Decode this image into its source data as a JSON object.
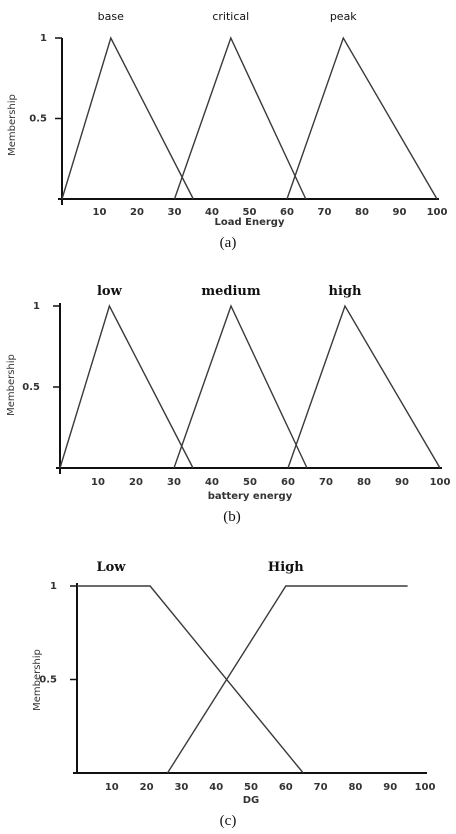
{
  "chart_data": [
    {
      "type": "line",
      "caption": "(a)",
      "xlabel": "Load Energy",
      "ylabel": "Membership",
      "xlim": [
        0,
        100
      ],
      "ylim": [
        0,
        1
      ],
      "xticks": [
        10,
        20,
        30,
        40,
        50,
        60,
        70,
        80,
        90,
        100
      ],
      "yticks": [
        {
          "value": 0.5,
          "label": "0.5"
        },
        {
          "value": 1,
          "label": "1"
        }
      ],
      "series": [
        {
          "name": "base",
          "points": [
            [
              0,
              0
            ],
            [
              13,
              1
            ],
            [
              35,
              0
            ]
          ]
        },
        {
          "name": "critical",
          "points": [
            [
              30,
              0
            ],
            [
              45,
              1
            ],
            [
              65,
              0
            ]
          ]
        },
        {
          "name": "peak",
          "points": [
            [
              60,
              0
            ],
            [
              75,
              1
            ],
            [
              100,
              0
            ]
          ]
        }
      ]
    },
    {
      "type": "line",
      "caption": "(b)",
      "xlabel": "battery energy",
      "ylabel": "Membership",
      "xlim": [
        0,
        100
      ],
      "ylim": [
        0,
        1
      ],
      "xticks": [
        10,
        20,
        30,
        40,
        50,
        60,
        70,
        80,
        90,
        100
      ],
      "yticks": [
        {
          "value": 0.5,
          "label": "0.5"
        },
        {
          "value": 1,
          "label": "1"
        }
      ],
      "series": [
        {
          "name": "low",
          "points": [
            [
              0,
              0
            ],
            [
              13,
              1
            ],
            [
              35,
              0
            ]
          ]
        },
        {
          "name": "medium",
          "points": [
            [
              30,
              0
            ],
            [
              45,
              1
            ],
            [
              65,
              0
            ]
          ]
        },
        {
          "name": "high",
          "points": [
            [
              60,
              0
            ],
            [
              75,
              1
            ],
            [
              100,
              0
            ]
          ]
        }
      ]
    },
    {
      "type": "line",
      "caption": "(c)",
      "xlabel": "DG",
      "ylabel": "Membership",
      "xlim": [
        0,
        100
      ],
      "ylim": [
        0,
        1
      ],
      "xticks": [
        10,
        20,
        30,
        40,
        50,
        60,
        70,
        80,
        90,
        100
      ],
      "yticks": [
        {
          "value": 0.5,
          "label": "0.5"
        },
        {
          "value": 1,
          "label": "1"
        }
      ],
      "series": [
        {
          "name": "Low",
          "points": [
            [
              0,
              1
            ],
            [
              21,
              1
            ],
            [
              65,
              0
            ]
          ]
        },
        {
          "name": "High",
          "points": [
            [
              26,
              0
            ],
            [
              60,
              1
            ],
            [
              95,
              1
            ]
          ]
        }
      ]
    }
  ]
}
